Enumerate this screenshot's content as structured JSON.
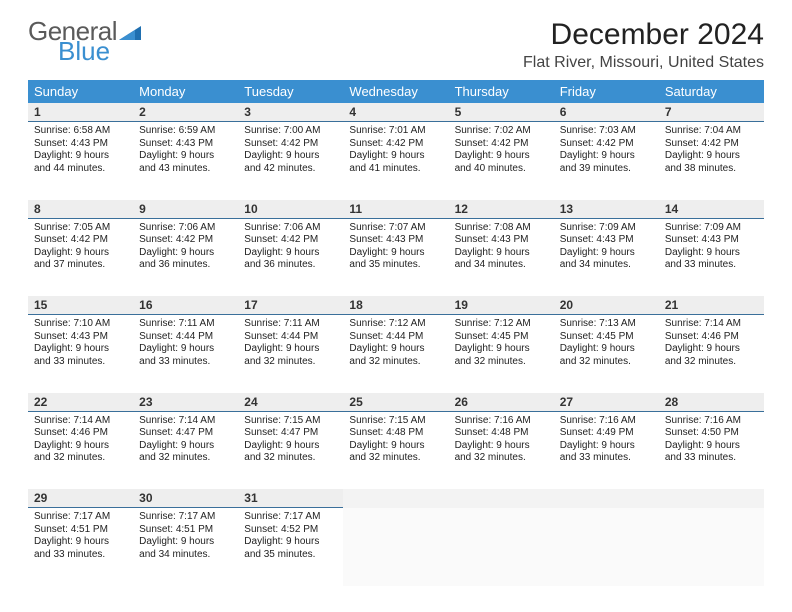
{
  "logo": {
    "word1": "General",
    "word2": "Blue",
    "color_gray": "#5a5a5a",
    "color_blue": "#3a8fd0"
  },
  "title": "December 2024",
  "location": "Flat River, Missouri, United States",
  "header_bg": "#3a8fd0",
  "daynum_bg": "#eeeeee",
  "daynum_border": "#3a6f9a",
  "text_color": "#222222",
  "fonts": {
    "title_size": 30,
    "location_size": 16,
    "header_size": 13,
    "daynum_size": 12,
    "cell_size": 10
  },
  "day_headers": [
    "Sunday",
    "Monday",
    "Tuesday",
    "Wednesday",
    "Thursday",
    "Friday",
    "Saturday"
  ],
  "weeks": [
    [
      {
        "num": "1",
        "sunrise": "Sunrise: 6:58 AM",
        "sunset": "Sunset: 4:43 PM",
        "day": "Daylight: 9 hours and 44 minutes."
      },
      {
        "num": "2",
        "sunrise": "Sunrise: 6:59 AM",
        "sunset": "Sunset: 4:43 PM",
        "day": "Daylight: 9 hours and 43 minutes."
      },
      {
        "num": "3",
        "sunrise": "Sunrise: 7:00 AM",
        "sunset": "Sunset: 4:42 PM",
        "day": "Daylight: 9 hours and 42 minutes."
      },
      {
        "num": "4",
        "sunrise": "Sunrise: 7:01 AM",
        "sunset": "Sunset: 4:42 PM",
        "day": "Daylight: 9 hours and 41 minutes."
      },
      {
        "num": "5",
        "sunrise": "Sunrise: 7:02 AM",
        "sunset": "Sunset: 4:42 PM",
        "day": "Daylight: 9 hours and 40 minutes."
      },
      {
        "num": "6",
        "sunrise": "Sunrise: 7:03 AM",
        "sunset": "Sunset: 4:42 PM",
        "day": "Daylight: 9 hours and 39 minutes."
      },
      {
        "num": "7",
        "sunrise": "Sunrise: 7:04 AM",
        "sunset": "Sunset: 4:42 PM",
        "day": "Daylight: 9 hours and 38 minutes."
      }
    ],
    [
      {
        "num": "8",
        "sunrise": "Sunrise: 7:05 AM",
        "sunset": "Sunset: 4:42 PM",
        "day": "Daylight: 9 hours and 37 minutes."
      },
      {
        "num": "9",
        "sunrise": "Sunrise: 7:06 AM",
        "sunset": "Sunset: 4:42 PM",
        "day": "Daylight: 9 hours and 36 minutes."
      },
      {
        "num": "10",
        "sunrise": "Sunrise: 7:06 AM",
        "sunset": "Sunset: 4:42 PM",
        "day": "Daylight: 9 hours and 36 minutes."
      },
      {
        "num": "11",
        "sunrise": "Sunrise: 7:07 AM",
        "sunset": "Sunset: 4:43 PM",
        "day": "Daylight: 9 hours and 35 minutes."
      },
      {
        "num": "12",
        "sunrise": "Sunrise: 7:08 AM",
        "sunset": "Sunset: 4:43 PM",
        "day": "Daylight: 9 hours and 34 minutes."
      },
      {
        "num": "13",
        "sunrise": "Sunrise: 7:09 AM",
        "sunset": "Sunset: 4:43 PM",
        "day": "Daylight: 9 hours and 34 minutes."
      },
      {
        "num": "14",
        "sunrise": "Sunrise: 7:09 AM",
        "sunset": "Sunset: 4:43 PM",
        "day": "Daylight: 9 hours and 33 minutes."
      }
    ],
    [
      {
        "num": "15",
        "sunrise": "Sunrise: 7:10 AM",
        "sunset": "Sunset: 4:43 PM",
        "day": "Daylight: 9 hours and 33 minutes."
      },
      {
        "num": "16",
        "sunrise": "Sunrise: 7:11 AM",
        "sunset": "Sunset: 4:44 PM",
        "day": "Daylight: 9 hours and 33 minutes."
      },
      {
        "num": "17",
        "sunrise": "Sunrise: 7:11 AM",
        "sunset": "Sunset: 4:44 PM",
        "day": "Daylight: 9 hours and 32 minutes."
      },
      {
        "num": "18",
        "sunrise": "Sunrise: 7:12 AM",
        "sunset": "Sunset: 4:44 PM",
        "day": "Daylight: 9 hours and 32 minutes."
      },
      {
        "num": "19",
        "sunrise": "Sunrise: 7:12 AM",
        "sunset": "Sunset: 4:45 PM",
        "day": "Daylight: 9 hours and 32 minutes."
      },
      {
        "num": "20",
        "sunrise": "Sunrise: 7:13 AM",
        "sunset": "Sunset: 4:45 PM",
        "day": "Daylight: 9 hours and 32 minutes."
      },
      {
        "num": "21",
        "sunrise": "Sunrise: 7:14 AM",
        "sunset": "Sunset: 4:46 PM",
        "day": "Daylight: 9 hours and 32 minutes."
      }
    ],
    [
      {
        "num": "22",
        "sunrise": "Sunrise: 7:14 AM",
        "sunset": "Sunset: 4:46 PM",
        "day": "Daylight: 9 hours and 32 minutes."
      },
      {
        "num": "23",
        "sunrise": "Sunrise: 7:14 AM",
        "sunset": "Sunset: 4:47 PM",
        "day": "Daylight: 9 hours and 32 minutes."
      },
      {
        "num": "24",
        "sunrise": "Sunrise: 7:15 AM",
        "sunset": "Sunset: 4:47 PM",
        "day": "Daylight: 9 hours and 32 minutes."
      },
      {
        "num": "25",
        "sunrise": "Sunrise: 7:15 AM",
        "sunset": "Sunset: 4:48 PM",
        "day": "Daylight: 9 hours and 32 minutes."
      },
      {
        "num": "26",
        "sunrise": "Sunrise: 7:16 AM",
        "sunset": "Sunset: 4:48 PM",
        "day": "Daylight: 9 hours and 32 minutes."
      },
      {
        "num": "27",
        "sunrise": "Sunrise: 7:16 AM",
        "sunset": "Sunset: 4:49 PM",
        "day": "Daylight: 9 hours and 33 minutes."
      },
      {
        "num": "28",
        "sunrise": "Sunrise: 7:16 AM",
        "sunset": "Sunset: 4:50 PM",
        "day": "Daylight: 9 hours and 33 minutes."
      }
    ],
    [
      {
        "num": "29",
        "sunrise": "Sunrise: 7:17 AM",
        "sunset": "Sunset: 4:51 PM",
        "day": "Daylight: 9 hours and 33 minutes."
      },
      {
        "num": "30",
        "sunrise": "Sunrise: 7:17 AM",
        "sunset": "Sunset: 4:51 PM",
        "day": "Daylight: 9 hours and 34 minutes."
      },
      {
        "num": "31",
        "sunrise": "Sunrise: 7:17 AM",
        "sunset": "Sunset: 4:52 PM",
        "day": "Daylight: 9 hours and 35 minutes."
      },
      null,
      null,
      null,
      null
    ]
  ]
}
